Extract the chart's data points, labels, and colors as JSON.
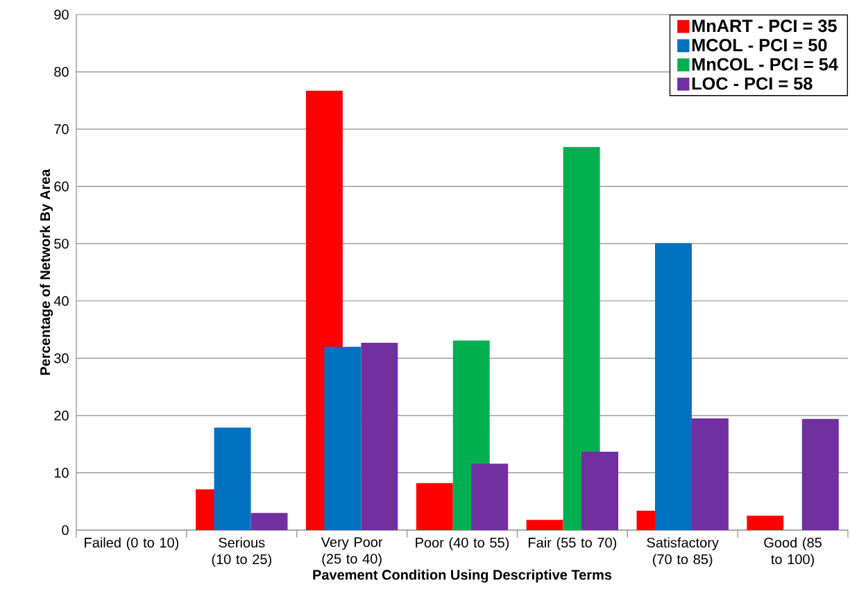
{
  "chart_data": {
    "type": "bar",
    "xlabel": "Pavement Condition Using Descriptive Terms",
    "ylabel": "Percentage of Network By Area",
    "categories": [
      "Failed (0 to 10)",
      "Serious (10 to 25)",
      "Very Poor (25 to 40)",
      "Poor (40 to 55)",
      "Fair (55 to 70)",
      "Satisfactory (70 to 85)",
      "Good (85 to 100)"
    ],
    "series": [
      {
        "name": "MnART - PCI = 35",
        "color": "#ff0000",
        "values": [
          0,
          7.1,
          76.7,
          8.2,
          1.8,
          3.4,
          2.5
        ]
      },
      {
        "name": "MCOL - PCI = 50",
        "color": "#0070c0",
        "values": [
          0,
          17.9,
          32.0,
          0,
          0,
          50.1,
          0
        ]
      },
      {
        "name": "MnCOL - PCI = 54",
        "color": "#00b050",
        "values": [
          0,
          0,
          0,
          33.1,
          66.9,
          0,
          0
        ]
      },
      {
        "name": "LOC - PCI = 58",
        "color": "#7030a0",
        "values": [
          0,
          3.0,
          32.7,
          11.6,
          13.7,
          19.5,
          19.4
        ]
      }
    ],
    "ylim": [
      0,
      90
    ],
    "yticks": [
      0,
      10,
      20,
      30,
      40,
      50,
      60,
      70,
      80,
      90
    ],
    "grid": "y",
    "legend": "top right"
  }
}
